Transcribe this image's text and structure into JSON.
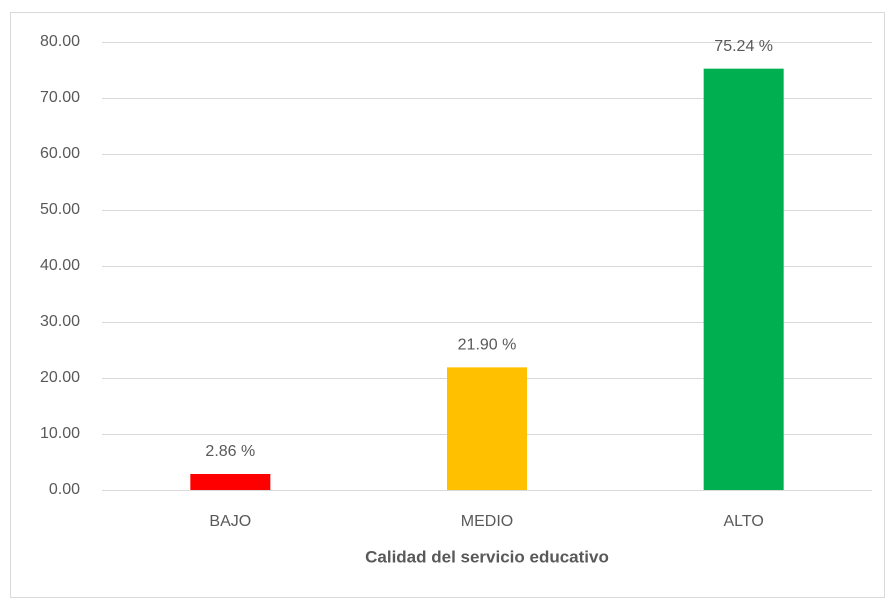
{
  "chart_data": {
    "type": "bar",
    "x_label": "Calidad del servicio educativo",
    "categories": [
      "BAJO",
      "MEDIO",
      "ALTO"
    ],
    "values": [
      2.86,
      21.9,
      75.24
    ],
    "value_labels": [
      "2.86 %",
      "21.90 %",
      "75.24 %"
    ],
    "colors": [
      "#ff0000",
      "#ffc000",
      "#00b050"
    ],
    "ylim": [
      0,
      80
    ],
    "yticks": [
      {
        "value": 0,
        "label": "0.00"
      },
      {
        "value": 10,
        "label": "10.00"
      },
      {
        "value": 20,
        "label": "20.00"
      },
      {
        "value": 30,
        "label": "30.00"
      },
      {
        "value": 40,
        "label": "40.00"
      },
      {
        "value": 50,
        "label": "50.00"
      },
      {
        "value": 60,
        "label": "60.00"
      },
      {
        "value": 70,
        "label": "70.00"
      },
      {
        "value": 80,
        "label": "80.00"
      }
    ],
    "grid": true
  }
}
